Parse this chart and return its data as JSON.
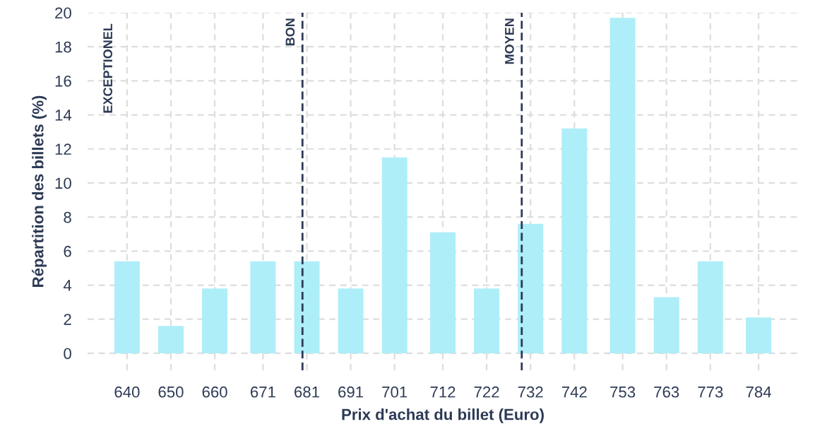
{
  "chart_data": {
    "type": "bar",
    "xlabel": "Prix d'achat du billet (Euro)",
    "ylabel": "Répartition des billets (%)",
    "x": [
      640,
      650,
      660,
      671,
      681,
      691,
      701,
      712,
      722,
      732,
      742,
      753,
      763,
      773,
      784
    ],
    "values": [
      5.4,
      1.6,
      3.8,
      5.4,
      5.4,
      3.8,
      11.5,
      7.1,
      3.8,
      7.6,
      13.2,
      19.7,
      3.3,
      5.4,
      2.1
    ],
    "color": "#aeeef8",
    "xlim": [
      631,
      793
    ],
    "xticks": [
      640,
      650,
      660,
      671,
      681,
      691,
      701,
      712,
      722,
      732,
      742,
      753,
      763,
      773,
      784
    ],
    "ylim": [
      -1,
      20
    ],
    "yticks": [
      0,
      2,
      4,
      6,
      8,
      10,
      12,
      14,
      16,
      18,
      20
    ],
    "grid": true,
    "ref_lines": [
      {
        "axis": "x",
        "value": 680,
        "label": "BON",
        "color": "#2d3a55",
        "line_style": "dashed"
      },
      {
        "axis": "x",
        "value": 730,
        "label": "MOYEN",
        "color": "#2d3a55",
        "line_style": "dashed"
      }
    ],
    "annotations": [
      "EXCEPTIONEL"
    ]
  }
}
